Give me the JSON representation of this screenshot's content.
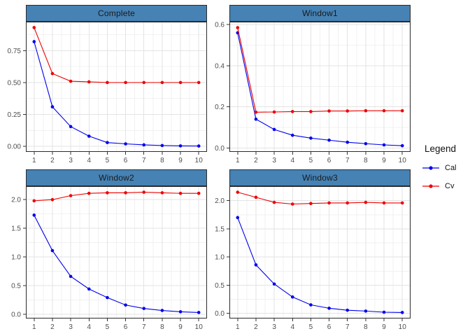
{
  "styles": {
    "background": "#FFFFFF",
    "strip_fill": "#4682B4",
    "strip_border": "#2B2B2B",
    "strip_text": "#1A1A1A",
    "panel_bg": "#FFFFFF",
    "panel_border": "#2B2B2B",
    "grid_major": "#E3E3E3",
    "grid_minor": "#F1F1F1",
    "axis_text": "#4D4D4D",
    "tick_color": "#333333"
  },
  "legend": {
    "title": "Legend",
    "entries": [
      {
        "label": "Cal",
        "color": "#0000EE"
      },
      {
        "label": "Cv",
        "color": "#EE0000"
      }
    ]
  },
  "chart_data": [
    {
      "type": "line",
      "title": "Complete",
      "x": [
        1,
        2,
        3,
        4,
        5,
        6,
        7,
        8,
        9,
        10
      ],
      "x_ticks": [
        1,
        2,
        3,
        4,
        5,
        6,
        7,
        8,
        9,
        10
      ],
      "xlim": [
        0.55,
        10.45
      ],
      "ylim": [
        -0.043,
        0.976
      ],
      "y_ticks": [
        0,
        0.25,
        0.5,
        0.75
      ],
      "y_tick_labels": [
        "0.00",
        "0.25",
        "0.50",
        "0.75"
      ],
      "grid": true,
      "series": [
        {
          "name": "Cal",
          "color": "#0000EE",
          "values": [
            0.82,
            0.31,
            0.155,
            0.08,
            0.03,
            0.02,
            0.012,
            0.007,
            0.004,
            0.003
          ]
        },
        {
          "name": "Cv",
          "color": "#EE0000",
          "values": [
            0.93,
            0.57,
            0.51,
            0.505,
            0.5,
            0.5,
            0.5,
            0.5,
            0.5,
            0.5
          ]
        }
      ]
    },
    {
      "type": "line",
      "title": "Window1",
      "x": [
        1,
        2,
        3,
        4,
        5,
        6,
        7,
        8,
        9,
        10
      ],
      "x_ticks": [
        1,
        2,
        3,
        4,
        5,
        6,
        7,
        8,
        9,
        10
      ],
      "xlim": [
        0.55,
        10.45
      ],
      "ylim": [
        -0.019,
        0.614
      ],
      "y_ticks": [
        0,
        0.2,
        0.4,
        0.6
      ],
      "y_tick_labels": [
        "0.0",
        "0.2",
        "0.4",
        "0.6"
      ],
      "grid": true,
      "series": [
        {
          "name": "Cal",
          "color": "#0000EE",
          "values": [
            0.56,
            0.14,
            0.09,
            0.062,
            0.048,
            0.038,
            0.028,
            0.021,
            0.015,
            0.011
          ]
        },
        {
          "name": "Cv",
          "color": "#EE0000",
          "values": [
            0.585,
            0.174,
            0.175,
            0.177,
            0.177,
            0.18,
            0.18,
            0.181,
            0.181,
            0.181
          ]
        }
      ]
    },
    {
      "type": "line",
      "title": "Window2",
      "x": [
        1,
        2,
        3,
        4,
        5,
        6,
        7,
        8,
        9,
        10
      ],
      "x_ticks": [
        1,
        2,
        3,
        4,
        5,
        6,
        7,
        8,
        9,
        10
      ],
      "xlim": [
        0.55,
        10.45
      ],
      "ylim": [
        -0.075,
        2.235
      ],
      "y_ticks": [
        0,
        0.5,
        1.0,
        1.5,
        2.0
      ],
      "y_tick_labels": [
        "0.0",
        "0.5",
        "1.0",
        "1.5",
        "2.0"
      ],
      "grid": true,
      "series": [
        {
          "name": "Cal",
          "color": "#0000EE",
          "values": [
            1.73,
            1.11,
            0.66,
            0.44,
            0.29,
            0.16,
            0.1,
            0.065,
            0.042,
            0.03
          ]
        },
        {
          "name": "Cv",
          "color": "#EE0000",
          "values": [
            1.98,
            2.0,
            2.07,
            2.11,
            2.12,
            2.12,
            2.13,
            2.12,
            2.11,
            2.11
          ]
        }
      ]
    },
    {
      "type": "line",
      "title": "Window3",
      "x": [
        1,
        2,
        3,
        4,
        5,
        6,
        7,
        8,
        9,
        10
      ],
      "x_ticks": [
        1,
        2,
        3,
        4,
        5,
        6,
        7,
        8,
        9,
        10
      ],
      "xlim": [
        0.55,
        10.45
      ],
      "ylim": [
        -0.092,
        2.257
      ],
      "y_ticks": [
        0,
        0.5,
        1.0,
        1.5,
        2.0
      ],
      "y_tick_labels": [
        "0.0",
        "0.5",
        "1.0",
        "1.5",
        "2.0"
      ],
      "grid": true,
      "series": [
        {
          "name": "Cal",
          "color": "#0000EE",
          "values": [
            1.7,
            0.86,
            0.52,
            0.29,
            0.15,
            0.09,
            0.055,
            0.04,
            0.02,
            0.015
          ]
        },
        {
          "name": "Cv",
          "color": "#EE0000",
          "values": [
            2.15,
            2.06,
            1.97,
            1.94,
            1.95,
            1.96,
            1.96,
            1.97,
            1.96,
            1.96
          ]
        }
      ]
    }
  ]
}
